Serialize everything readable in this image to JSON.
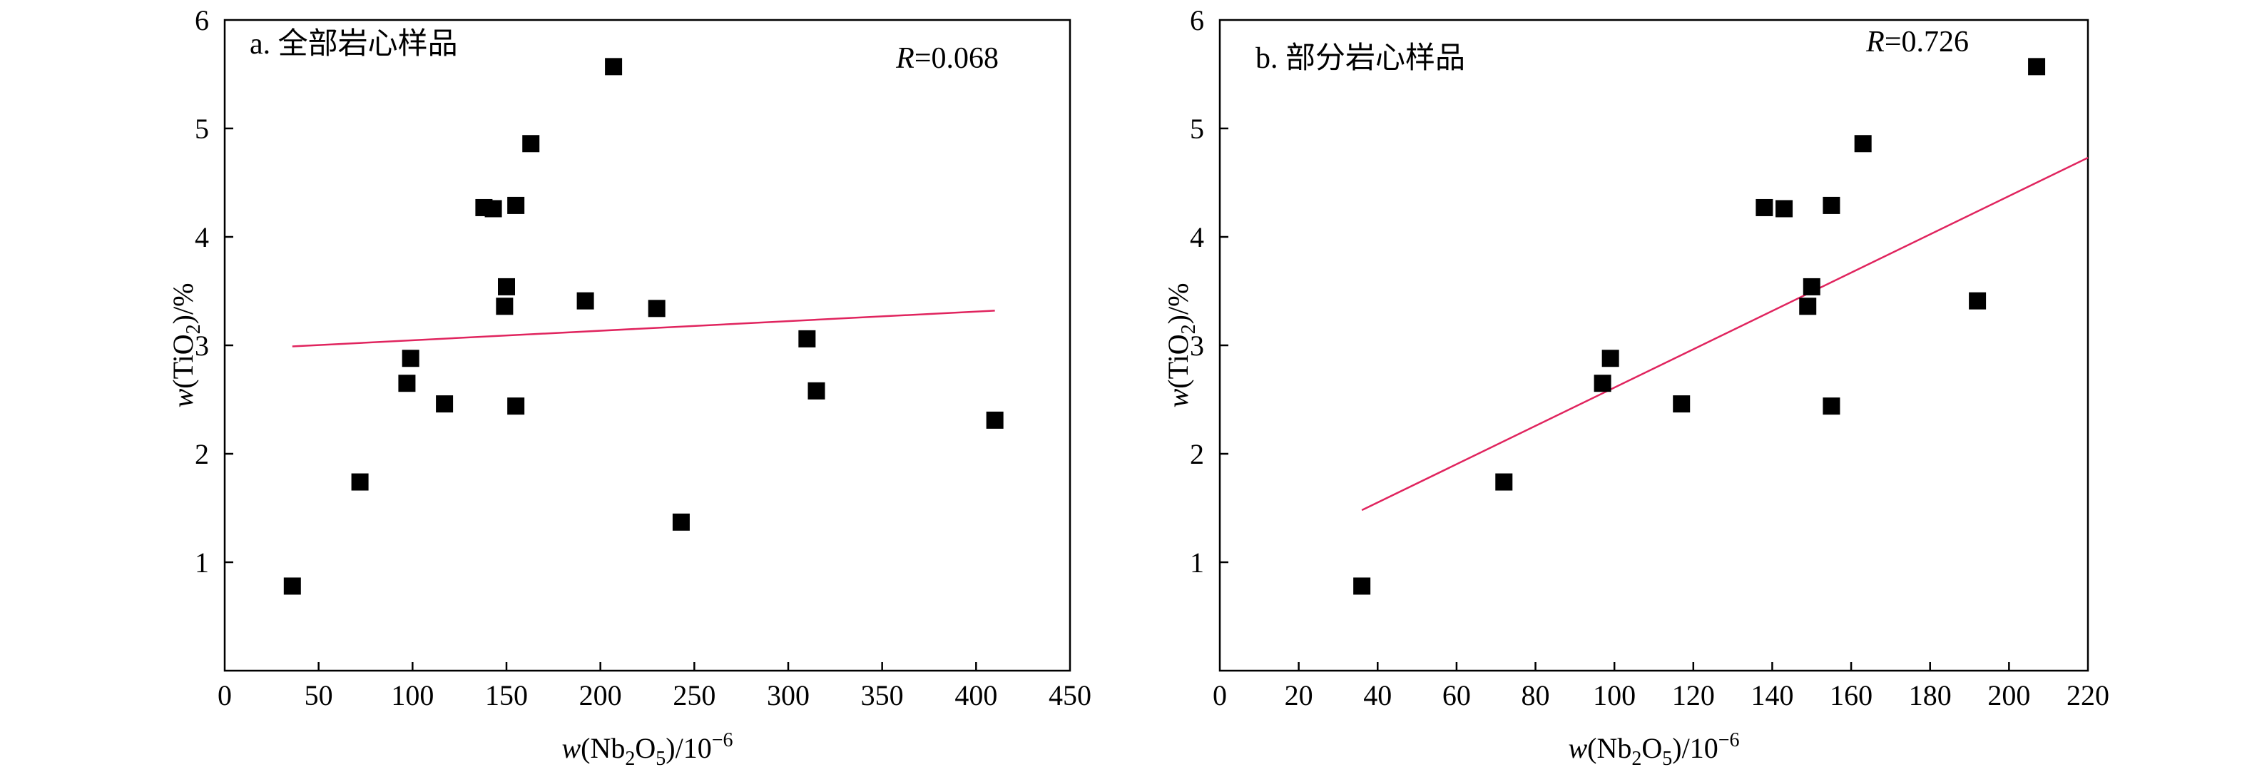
{
  "chart_data": [
    {
      "type": "scatter",
      "title": "a. 全部岩心样品",
      "r_symbol": "R",
      "r_value": "=0.068",
      "xlabel": {
        "w": "w",
        "open": "(Nb",
        "sub1": "2",
        "mid": "O",
        "sub2": "5",
        "close": ")/10",
        "sup": "−6"
      },
      "ylabel": {
        "w": "w",
        "open": "(TiO",
        "sub": "2",
        "close": ")/%"
      },
      "xlim": [
        0,
        450
      ],
      "ylim": [
        0,
        6
      ],
      "x_ticks": [
        "0",
        "50",
        "100",
        "150",
        "200",
        "250",
        "300",
        "350",
        "400",
        "450"
      ],
      "y_ticks": [
        "1",
        "2",
        "3",
        "4",
        "5",
        "6"
      ],
      "marker_color": "#000000",
      "line_color": "#e0245e",
      "points": [
        {
          "x": 36,
          "y": 0.78
        },
        {
          "x": 72,
          "y": 1.74
        },
        {
          "x": 97,
          "y": 2.65
        },
        {
          "x": 99,
          "y": 2.88
        },
        {
          "x": 117,
          "y": 2.46
        },
        {
          "x": 138,
          "y": 4.27
        },
        {
          "x": 143,
          "y": 4.26
        },
        {
          "x": 149,
          "y": 3.36
        },
        {
          "x": 150,
          "y": 3.54
        },
        {
          "x": 155,
          "y": 4.29
        },
        {
          "x": 155,
          "y": 2.44
        },
        {
          "x": 163,
          "y": 4.86
        },
        {
          "x": 192,
          "y": 3.41
        },
        {
          "x": 207,
          "y": 5.57
        },
        {
          "x": 230,
          "y": 3.34
        },
        {
          "x": 243,
          "y": 1.37
        },
        {
          "x": 310,
          "y": 3.06
        },
        {
          "x": 315,
          "y": 2.58
        },
        {
          "x": 410,
          "y": 2.31
        }
      ],
      "trend_line": {
        "x": [
          36,
          410
        ],
        "y": [
          2.99,
          3.32
        ]
      }
    },
    {
      "type": "scatter",
      "title": "b. 部分岩心样品",
      "r_symbol": "R",
      "r_value": "=0.726",
      "xlabel": {
        "w": "w",
        "open": "(Nb",
        "sub1": "2",
        "mid": "O",
        "sub2": "5",
        "close": ")/10",
        "sup": "−6"
      },
      "ylabel": {
        "w": "w",
        "open": "(TiO",
        "sub": "2",
        "close": ")/%"
      },
      "xlim": [
        0,
        220
      ],
      "ylim": [
        0,
        6
      ],
      "x_ticks": [
        "0",
        "20",
        "40",
        "60",
        "80",
        "100",
        "120",
        "140",
        "160",
        "180",
        "200",
        "220"
      ],
      "y_ticks": [
        "1",
        "2",
        "3",
        "4",
        "5",
        "6"
      ],
      "marker_color": "#000000",
      "line_color": "#e0245e",
      "points": [
        {
          "x": 36,
          "y": 0.78
        },
        {
          "x": 72,
          "y": 1.74
        },
        {
          "x": 97,
          "y": 2.65
        },
        {
          "x": 99,
          "y": 2.88
        },
        {
          "x": 117,
          "y": 2.46
        },
        {
          "x": 138,
          "y": 4.27
        },
        {
          "x": 143,
          "y": 4.26
        },
        {
          "x": 149,
          "y": 3.36
        },
        {
          "x": 150,
          "y": 3.54
        },
        {
          "x": 155,
          "y": 4.29
        },
        {
          "x": 155,
          "y": 2.44
        },
        {
          "x": 163,
          "y": 4.86
        },
        {
          "x": 192,
          "y": 3.41
        },
        {
          "x": 207,
          "y": 5.57
        }
      ],
      "trend_line": {
        "x": [
          36,
          220
        ],
        "y": [
          1.48,
          4.73
        ]
      }
    }
  ]
}
